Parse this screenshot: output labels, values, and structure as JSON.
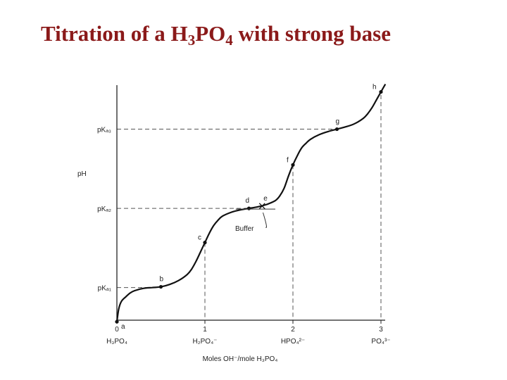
{
  "title": {
    "prefix": "Titration of a H",
    "sub1": "3",
    "mid": "PO",
    "sub2": "4",
    "suffix": " with strong base"
  },
  "chart_data": {
    "type": "line",
    "ylabel": "pH",
    "xlabel": "Moles OH⁻/mole H₃PO₄",
    "x_ticks": [
      0,
      1,
      2,
      3
    ],
    "x_tick_species": [
      "H₃PO₄",
      "H₂PO₄⁻",
      "HPO₄²⁻",
      "PO₄³⁻"
    ],
    "y_ticks": [
      {
        "label": "pKₐ₁",
        "value": 2.1
      },
      {
        "label": "pKₐ₂",
        "value": 7.2
      },
      {
        "label": "pKₐ₃",
        "value": 12.3
      }
    ],
    "xlim": [
      0,
      3.1
    ],
    "ylim": [
      0,
      14.5
    ],
    "curve": {
      "x": [
        0,
        0.02,
        0.05,
        0.1,
        0.15,
        0.2,
        0.3,
        0.4,
        0.5,
        0.6,
        0.7,
        0.8,
        0.85,
        0.9,
        0.95,
        1.0,
        1.05,
        1.1,
        1.15,
        1.2,
        1.3,
        1.4,
        1.5,
        1.6,
        1.7,
        1.8,
        1.85,
        1.9,
        1.95,
        2.0,
        2.05,
        2.1,
        2.15,
        2.2,
        2.3,
        2.4,
        2.5,
        2.6,
        2.7,
        2.8,
        2.85,
        2.9,
        2.95,
        3.0,
        3.05
      ],
      "y": [
        -0.1,
        0.7,
        1.2,
        1.5,
        1.75,
        1.9,
        2.05,
        2.1,
        2.15,
        2.3,
        2.55,
        2.95,
        3.3,
        3.8,
        4.4,
        5.0,
        5.6,
        6.1,
        6.45,
        6.7,
        6.95,
        7.1,
        7.2,
        7.3,
        7.45,
        7.7,
        8.0,
        8.5,
        9.3,
        10.0,
        10.6,
        11.1,
        11.4,
        11.65,
        11.95,
        12.15,
        12.3,
        12.45,
        12.65,
        13.0,
        13.3,
        13.7,
        14.2,
        14.7,
        15.2
      ]
    },
    "points": [
      {
        "label": "a",
        "x": 0.0,
        "y": -0.1
      },
      {
        "label": "b",
        "x": 0.5,
        "y": 2.15
      },
      {
        "label": "c",
        "x": 1.0,
        "y": 5.0
      },
      {
        "label": "d",
        "x": 1.5,
        "y": 7.2
      },
      {
        "label": "e",
        "x": 1.65,
        "y": 7.35
      },
      {
        "label": "f",
        "x": 2.0,
        "y": 10.0
      },
      {
        "label": "g",
        "x": 2.5,
        "y": 12.3
      },
      {
        "label": "h",
        "x": 3.0,
        "y": 14.7
      }
    ],
    "annotation": {
      "text": "Buffer",
      "x_from": 1.35,
      "x_to": 1.8,
      "y": 7.2
    },
    "grid": false,
    "reference_lines": "dashed"
  }
}
